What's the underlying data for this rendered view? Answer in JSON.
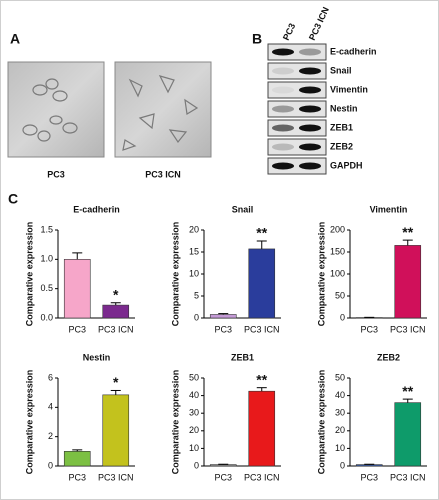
{
  "panel_a": {
    "label": "A",
    "images": [
      "PC3",
      "PC3 ICN"
    ]
  },
  "panel_b": {
    "label": "B",
    "lanes": [
      "PC3",
      "PC3 ICN"
    ],
    "proteins": [
      "E-cadherin",
      "Snail",
      "Vimentin",
      "Nestin",
      "ZEB1",
      "ZEB2",
      "GAPDH"
    ]
  },
  "panel_c": {
    "label": "C"
  },
  "chart_data": [
    {
      "type": "bar",
      "title": "E-cadherin",
      "ylabel": "Comparative expression",
      "categories": [
        "PC3",
        "PC3 ICN"
      ],
      "values": [
        1.0,
        0.22
      ],
      "errors": [
        0.11,
        0.04
      ],
      "colors": [
        "#f6a6c9",
        "#7b2a8e"
      ],
      "ylim": [
        0,
        1.5
      ],
      "yticks": [
        {
          "value": 0,
          "label": "0.0"
        },
        0.5,
        {
          "value": 1,
          "label": "1.0"
        },
        1.5
      ],
      "annotations": [
        {
          "category": "PC3 ICN",
          "text": "*"
        }
      ]
    },
    {
      "type": "bar",
      "title": "Snail",
      "ylabel": "Comparative expression",
      "categories": [
        "PC3",
        "PC3 ICN"
      ],
      "values": [
        0.8,
        15.7
      ],
      "errors": [
        0.2,
        1.8
      ],
      "colors": [
        "#c49ad6",
        "#2a3d9c"
      ],
      "ylim": [
        0,
        20
      ],
      "yticks": [
        0,
        5,
        10,
        15,
        20
      ],
      "annotations": [
        {
          "category": "PC3 ICN",
          "text": "**"
        }
      ]
    },
    {
      "type": "bar",
      "title": "Vimentin",
      "ylabel": "Comparative expression",
      "categories": [
        "PC3",
        "PC3 ICN"
      ],
      "values": [
        1,
        165
      ],
      "errors": [
        0.5,
        12
      ],
      "colors": [
        "#e07aa6",
        "#d0105a"
      ],
      "ylim": [
        0,
        200
      ],
      "yticks": [
        0,
        50,
        100,
        150,
        200
      ],
      "annotations": [
        {
          "category": "PC3 ICN",
          "text": "**"
        }
      ]
    },
    {
      "type": "bar",
      "title": "Nestin",
      "ylabel": "Comparative expression",
      "categories": [
        "PC3",
        "PC3 ICN"
      ],
      "values": [
        1.0,
        4.85
      ],
      "errors": [
        0.1,
        0.3
      ],
      "colors": [
        "#7cc043",
        "#c3c21d"
      ],
      "ylim": [
        0,
        6
      ],
      "yticks": [
        0,
        2,
        4,
        6
      ],
      "annotations": [
        {
          "category": "PC3 ICN",
          "text": "*"
        }
      ]
    },
    {
      "type": "bar",
      "title": "ZEB1",
      "ylabel": "Comparative expression",
      "categories": [
        "PC3",
        "PC3 ICN"
      ],
      "values": [
        0.8,
        42.5
      ],
      "errors": [
        0.2,
        2
      ],
      "colors": [
        "#9a9a9a",
        "#e8191b"
      ],
      "ylim": [
        0,
        50
      ],
      "yticks": [
        0,
        10,
        20,
        30,
        40,
        50
      ],
      "annotations": [
        {
          "category": "PC3 ICN",
          "text": "**"
        }
      ]
    },
    {
      "type": "bar",
      "title": "ZEB2",
      "ylabel": "Comparative expression",
      "categories": [
        "PC3",
        "PC3 ICN"
      ],
      "values": [
        0.8,
        36
      ],
      "errors": [
        0.2,
        2
      ],
      "colors": [
        "#3b5fb0",
        "#0e9b6a"
      ],
      "ylim": [
        0,
        50
      ],
      "yticks": [
        0,
        10,
        20,
        30,
        40,
        50
      ],
      "annotations": [
        {
          "category": "PC3 ICN",
          "text": "**"
        }
      ]
    }
  ]
}
